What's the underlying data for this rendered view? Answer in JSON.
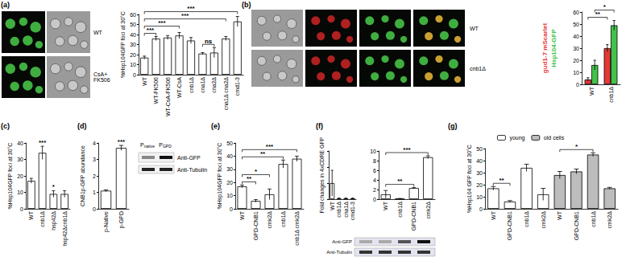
{
  "figure": {
    "panels": [
      {
        "letter": "(a)",
        "image_rows": [
          "WT",
          "CsA+ FK506"
        ]
      },
      {
        "letter": "(b)",
        "image_rows": [
          "WT",
          "cnb1Δ"
        ]
      },
      {
        "letter": "(c)"
      },
      {
        "letter": "(d)",
        "blot_lanes": [
          {
            "main": "P",
            "sub": "native"
          },
          {
            "main": "P",
            "sub": "GPD"
          }
        ],
        "blot_rows": [
          "Anti-GFP",
          "Anti-Tubulin"
        ]
      },
      {
        "letter": "(e)"
      },
      {
        "letter": "(f)",
        "blot_rows": [
          "Anti-GFP",
          "Anti-Tubulin"
        ]
      },
      {
        "letter": "(g)"
      }
    ]
  },
  "chart_data": [
    {
      "type": "bar",
      "y_label": "%Hsp104GFP foci at 30°C",
      "categories": [
        "WT",
        "WT-FK506",
        "WT-CsA-FK506",
        "WT-CsA",
        "cnb1Δ",
        "cna1Δ",
        "cna2Δ",
        "cna1Δ cna2Δ",
        "cmd1-3"
      ],
      "values": [
        17,
        36,
        37,
        39,
        34,
        21,
        22,
        36,
        53
      ],
      "errors": [
        1.5,
        2,
        2,
        3,
        3,
        1,
        5,
        2,
        5
      ],
      "color": "#ffffff",
      "ylim": [
        0,
        60
      ],
      "yticks": [
        0,
        10,
        20,
        30,
        40,
        50,
        60
      ],
      "grid": false,
      "annotations": [
        {
          "from": "WT",
          "to": "WT-FK506",
          "label": "***"
        },
        {
          "from": "WT",
          "to": "WT-CsA",
          "label": "***"
        },
        {
          "from": "cna1Δ",
          "to": "cna2Δ",
          "label": "ns"
        },
        {
          "from": "WT",
          "to": "cna1Δ cna2Δ",
          "label": "***"
        },
        {
          "from": "WT",
          "to": "cmd1-3",
          "label": "***"
        }
      ]
    },
    {
      "type": "bar",
      "legend": "left",
      "categories": [
        "WT",
        "cnb1Δ"
      ],
      "series": [
        {
          "name": "gud1-7 mScarlet",
          "color": "#e53935",
          "values": [
            4,
            30
          ],
          "errors": [
            1.5,
            3
          ]
        },
        {
          "name": "Hsp104-GFP",
          "color": "#43c24a",
          "values": [
            16,
            49
          ],
          "errors": [
            4,
            4
          ]
        }
      ],
      "ylim": [
        0,
        60
      ],
      "yticks": [
        0,
        10,
        20,
        30,
        40,
        50,
        60
      ],
      "grid": false,
      "annotations": [
        {
          "series": "gud1-7 mScarlet",
          "from": "WT",
          "to": "cnb1Δ",
          "label": "**"
        },
        {
          "series": "Hsp104-GFP",
          "from": "WT",
          "to": "cnb1Δ",
          "label": "*"
        }
      ]
    },
    {
      "type": "bar",
      "y_label": "%Hsp104GFP foci at 30°C",
      "categories": [
        "WT",
        "cnb1Δ",
        "hsp42Δ",
        "hsp42Δcnb1Δ"
      ],
      "values": [
        17,
        34,
        9,
        9
      ],
      "errors": [
        1.5,
        4,
        2,
        2
      ],
      "color": "#ffffff",
      "ylim": [
        0,
        40
      ],
      "yticks": [
        0,
        10,
        20,
        30,
        40
      ],
      "grid": false,
      "annotations": [
        {
          "at": "cnb1Δ",
          "label": "***"
        },
        {
          "at": "hsp42Δ",
          "label": "*"
        }
      ]
    },
    {
      "type": "bar",
      "y_label": "CNB1p-GFP abundance",
      "categories": [
        "p-Native",
        "p-GPD"
      ],
      "values": [
        1.1,
        3.7
      ],
      "errors": [
        0.05,
        0.15
      ],
      "color": "#ffffff",
      "ylim": [
        0,
        4
      ],
      "yticks": [
        0,
        1,
        2,
        3,
        4
      ],
      "grid": false,
      "annotations": [
        {
          "at": "p-GPD",
          "label": "***"
        }
      ]
    },
    {
      "type": "bar",
      "y_label": "%Hsp104GFP foci at 30°C",
      "categories": [
        "WT",
        "GPD-CNB1",
        "cmk2Δ",
        "cnb1Δ",
        "cnb1Δ cmk2Δ"
      ],
      "values": [
        17,
        6,
        11,
        34,
        38
      ],
      "errors": [
        1,
        1,
        4,
        3,
        2
      ],
      "color": "#ffffff",
      "ylim": [
        0,
        50
      ],
      "yticks": [
        0,
        10,
        20,
        30,
        40,
        50
      ],
      "grid": false,
      "annotations": [
        {
          "from": "WT",
          "to": "GPD-CNB1",
          "label": "**"
        },
        {
          "from": "WT",
          "to": "cmk2Δ",
          "label": "*"
        },
        {
          "from": "WT",
          "to": "cnb1Δ",
          "label": "**"
        },
        {
          "from": "WT",
          "to": "cnb1Δ cmk2Δ",
          "label": "***"
        }
      ]
    },
    {
      "type": "bar",
      "y_label": "Fold changes in 4xCDRE GFP",
      "categories": [
        "WT",
        "cnb1Δ",
        "cna1Δ",
        "cmd1-3"
      ],
      "values": [
        1,
        0.05,
        0.05,
        0.05
      ],
      "errors": [
        0.8,
        0.02,
        0.02,
        0.02
      ],
      "color": "#ffffff",
      "ylim": [
        0,
        3
      ],
      "yticks": [
        0,
        1,
        2,
        3
      ],
      "grid": false,
      "tick_labels": "x"
    },
    {
      "type": "bar",
      "categories": [
        "WT",
        "cnb1Δ",
        "GPD-CNB1",
        "cmk2Δ"
      ],
      "values": [
        1,
        0.1,
        2.3,
        8.7
      ],
      "errors": [
        0.8,
        0.05,
        0.1,
        0.3
      ],
      "color": "#ffffff",
      "ylim": [
        0,
        10
      ],
      "yticks": [
        0,
        2,
        4,
        6,
        8,
        10
      ],
      "grid": false,
      "annotations": [
        {
          "from": "WT",
          "to": "GPD-CNB1",
          "label": "**"
        },
        {
          "from": "WT",
          "to": "cmk2Δ",
          "label": "***"
        }
      ]
    },
    {
      "type": "bar",
      "y_label": "%Hsp104 GFP foci at 30°C",
      "legend": "top",
      "categories": [
        "WT",
        "GPD-CNB1",
        "cnb1Δ",
        "cmk2Δ",
        "WT",
        "GPD-CNB1",
        "cnb1Δ",
        "cmk2Δ"
      ],
      "series": [
        {
          "name": "young",
          "color": "#ffffff",
          "values": [
            17,
            6,
            34,
            12,
            null,
            null,
            null,
            null
          ],
          "errors": [
            1.5,
            0.8,
            3,
            5,
            null,
            null,
            null,
            null
          ]
        },
        {
          "name": "old cells",
          "color": "#bdbdbd",
          "values": [
            null,
            null,
            null,
            null,
            28,
            31,
            45,
            17
          ],
          "errors": [
            null,
            null,
            null,
            null,
            3,
            2,
            1.5,
            0.8
          ]
        }
      ],
      "ylim": [
        0,
        50
      ],
      "yticks": [
        0,
        10,
        20,
        30,
        40,
        50
      ],
      "grid": false,
      "annotations": [
        {
          "series": "young",
          "from": "WT",
          "to": "GPD-CNB1",
          "label": "**"
        },
        {
          "series": "old cells",
          "from": "WT",
          "to": "cnb1Δ",
          "label": "*"
        }
      ]
    }
  ]
}
